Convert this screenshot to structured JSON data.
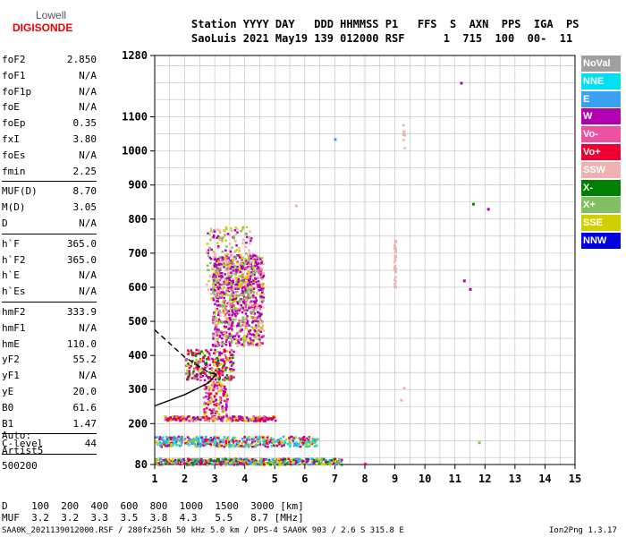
{
  "logo": {
    "line1": "Lowell",
    "line2": "DIGISONDE"
  },
  "header": {
    "line1": "Station YYYY DAY   DDD HHMMSS P1   FFS  S  AXN  PPS  IGA  PS",
    "line2": "SaoLuis 2021 May19 139 012000 RSF      1  715  100  00-  11"
  },
  "params_group1": [
    {
      "name": "foF2",
      "value": "2.850"
    },
    {
      "name": "foF1",
      "value": "N/A"
    },
    {
      "name": "foF1p",
      "value": "N/A"
    },
    {
      "name": "foE",
      "value": "N/A"
    },
    {
      "name": "foEp",
      "value": "0.35"
    },
    {
      "name": "fxI",
      "value": "3.80"
    },
    {
      "name": "foEs",
      "value": "N/A"
    },
    {
      "name": "fmin",
      "value": "2.25"
    }
  ],
  "params_group2": [
    {
      "name": "MUF(D)",
      "value": "8.70"
    },
    {
      "name": "M(D)",
      "value": "3.05"
    },
    {
      "name": "D",
      "value": "N/A"
    }
  ],
  "params_group3": [
    {
      "name": "h`F",
      "value": "365.0"
    },
    {
      "name": "h`F2",
      "value": "365.0"
    },
    {
      "name": "h`E",
      "value": "N/A"
    },
    {
      "name": "h`Es",
      "value": "N/A"
    }
  ],
  "params_group4": [
    {
      "name": "hmF2",
      "value": "333.9"
    },
    {
      "name": "hmF1",
      "value": "N/A"
    },
    {
      "name": "hmE",
      "value": "110.0"
    },
    {
      "name": "yF2",
      "value": "55.2"
    },
    {
      "name": "yF1",
      "value": "N/A"
    },
    {
      "name": "yE",
      "value": "20.0"
    },
    {
      "name": "B0",
      "value": "61.6"
    },
    {
      "name": "B1",
      "value": "1.47"
    }
  ],
  "clevel": {
    "name": "C-level",
    "value": "44"
  },
  "auto": {
    "line1": "Auto:",
    "line2": "Artist5",
    "line3": "500200"
  },
  "legend": [
    {
      "label": "NoVal",
      "color": "#a0a0a0"
    },
    {
      "label": "NNE",
      "color": "#00e0f0"
    },
    {
      "label": "E",
      "color": "#3aa0f0"
    },
    {
      "label": "W",
      "color": "#b000b0"
    },
    {
      "label": "Vo-",
      "color": "#f050a0"
    },
    {
      "label": "Vo+",
      "color": "#f00030"
    },
    {
      "label": "SSW",
      "color": "#f0b0b0"
    },
    {
      "label": "X-",
      "color": "#008000"
    },
    {
      "label": "X+",
      "color": "#80c060"
    },
    {
      "label": "SSE",
      "color": "#d0d000"
    },
    {
      "label": "NNW",
      "color": "#0000e0"
    }
  ],
  "bottom": {
    "d_line": "D    100  200  400  600  800  1000  1500  3000 [km]",
    "muf_line": "MUF  3.2  3.2  3.3  3.5  3.8  4.3   5.5   8.7 [MHz]"
  },
  "footer": {
    "left": "SAA0K_2021139012000.RSF / 280fx256h 50 kHz 5.0 km / DPS-4 SAA0K 903 / 2.6 S 315.8 E",
    "right": "Ion2Png 1.3.17"
  },
  "chart_data": {
    "type": "scatter",
    "xlim": [
      1,
      15
    ],
    "ylim": [
      80,
      1280
    ],
    "x_ticks": [
      "1",
      "2",
      "3",
      "4",
      "5",
      "6",
      "7",
      "8",
      "9",
      "10",
      "11",
      "12",
      "13",
      "14",
      "15"
    ],
    "y_ticks": [
      "80",
      "200",
      "300",
      "400",
      "500",
      "600",
      "700",
      "800",
      "900",
      "1000",
      "1100",
      "1280"
    ],
    "grid": true,
    "legend_position": "right",
    "clusters": [
      {
        "x": [
          2.9,
          4.6
        ],
        "y": [
          430,
          700
        ],
        "count": 900,
        "colors": [
          "#b000b0",
          "#b000b0",
          "#b000b0",
          "#f050a0",
          "#d0d000",
          "#f0b0b0",
          "#80c060"
        ]
      },
      {
        "x": [
          2.7,
          4.2
        ],
        "y": [
          560,
          780
        ],
        "count": 260,
        "colors": [
          "#d0d000",
          "#80c060",
          "#f0b0b0",
          "#b000b0"
        ]
      },
      {
        "x": [
          2.0,
          3.6
        ],
        "y": [
          330,
          420
        ],
        "count": 260,
        "colors": [
          "#f00030",
          "#f050a0",
          "#008000",
          "#d0d000",
          "#b000b0"
        ]
      },
      {
        "x": [
          2.6,
          3.4
        ],
        "y": [
          230,
          330
        ],
        "count": 120,
        "colors": [
          "#f00030",
          "#d0d000",
          "#b000b0",
          "#f050a0"
        ]
      },
      {
        "x": [
          1.3,
          5.0
        ],
        "y": [
          210,
          225
        ],
        "count": 220,
        "colors": [
          "#f00030",
          "#f050a0",
          "#d0d000",
          "#b000b0"
        ]
      },
      {
        "x": [
          1.0,
          6.4
        ],
        "y": [
          135,
          165
        ],
        "count": 450,
        "colors": [
          "#3aa0f0",
          "#00e0f0",
          "#d0d000",
          "#b000b0",
          "#f00030",
          "#80c060"
        ]
      },
      {
        "x": [
          1.0,
          7.2
        ],
        "y": [
          82,
          100
        ],
        "count": 500,
        "colors": [
          "#f00030",
          "#3aa0f0",
          "#d0d000",
          "#80c060",
          "#b000b0",
          "#008000"
        ]
      },
      {
        "x": [
          8.95,
          9.0
        ],
        "y": [
          600,
          740
        ],
        "count": 40,
        "colors": [
          "#f0b0b0"
        ]
      },
      {
        "x": [
          9.25,
          9.3
        ],
        "y": [
          1010,
          1080
        ],
        "count": 12,
        "colors": [
          "#f0b0b0"
        ]
      }
    ],
    "points": [
      {
        "x": 11.2,
        "y": 1200,
        "color": "#b000b0"
      },
      {
        "x": 7.0,
        "y": 1035,
        "color": "#3aa0f0"
      },
      {
        "x": 11.6,
        "y": 845,
        "color": "#008000"
      },
      {
        "x": 12.1,
        "y": 830,
        "color": "#b000b0"
      },
      {
        "x": 11.3,
        "y": 620,
        "color": "#b000b0"
      },
      {
        "x": 11.5,
        "y": 595,
        "color": "#b000b0"
      },
      {
        "x": 5.7,
        "y": 840,
        "color": "#f0b0b0"
      },
      {
        "x": 9.2,
        "y": 270,
        "color": "#f0b0b0"
      },
      {
        "x": 9.3,
        "y": 305,
        "color": "#f0b0b0"
      },
      {
        "x": 11.8,
        "y": 145,
        "color": "#80c060"
      },
      {
        "x": 8.0,
        "y": 82,
        "color": "#f00030"
      }
    ],
    "trace_solid": [
      [
        1.0,
        252
      ],
      [
        2.0,
        285
      ],
      [
        2.8,
        320
      ],
      [
        3.05,
        345
      ]
    ],
    "trace_dashed": [
      [
        1.0,
        475
      ],
      [
        2.0,
        395
      ],
      [
        2.8,
        350
      ],
      [
        3.05,
        345
      ]
    ]
  }
}
